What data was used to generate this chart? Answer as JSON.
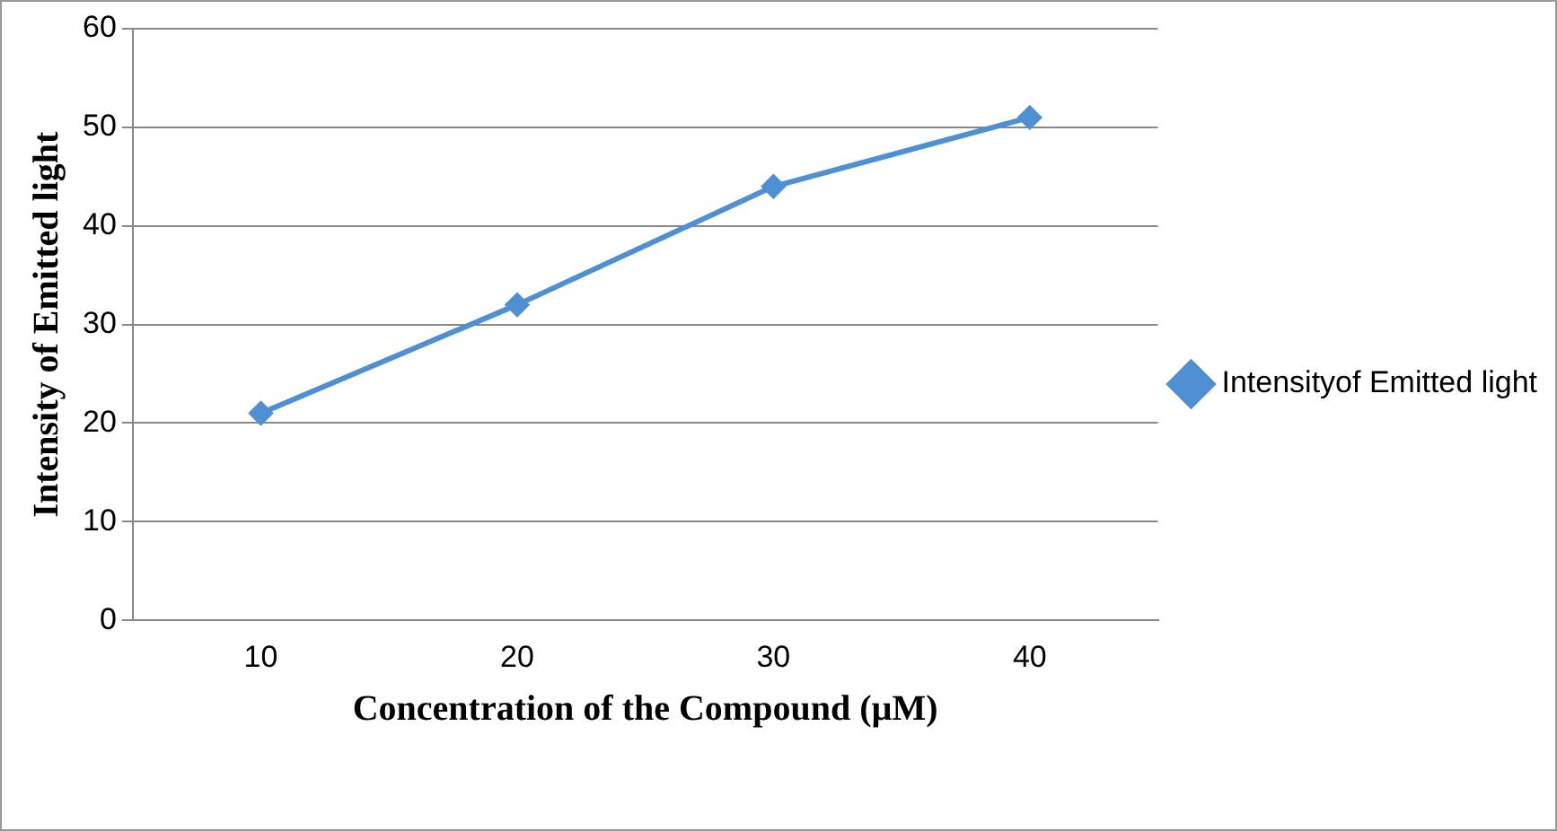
{
  "chart_data": {
    "type": "line",
    "xlabel": "Concentration of the Compound (µM)",
    "ylabel": "Intensity of Emitted light",
    "categories": [
      "10",
      "20",
      "30",
      "40"
    ],
    "series": [
      {
        "name": "Intensityof Emitted light",
        "color": "#4f8fd4",
        "values": [
          21,
          32,
          44,
          51
        ]
      }
    ],
    "ylim": [
      0,
      60
    ],
    "yticks": [
      0,
      10,
      20,
      30,
      40,
      50,
      60
    ],
    "grid": "y",
    "legend": "right",
    "marker": "diamond",
    "line_style": "solid"
  }
}
